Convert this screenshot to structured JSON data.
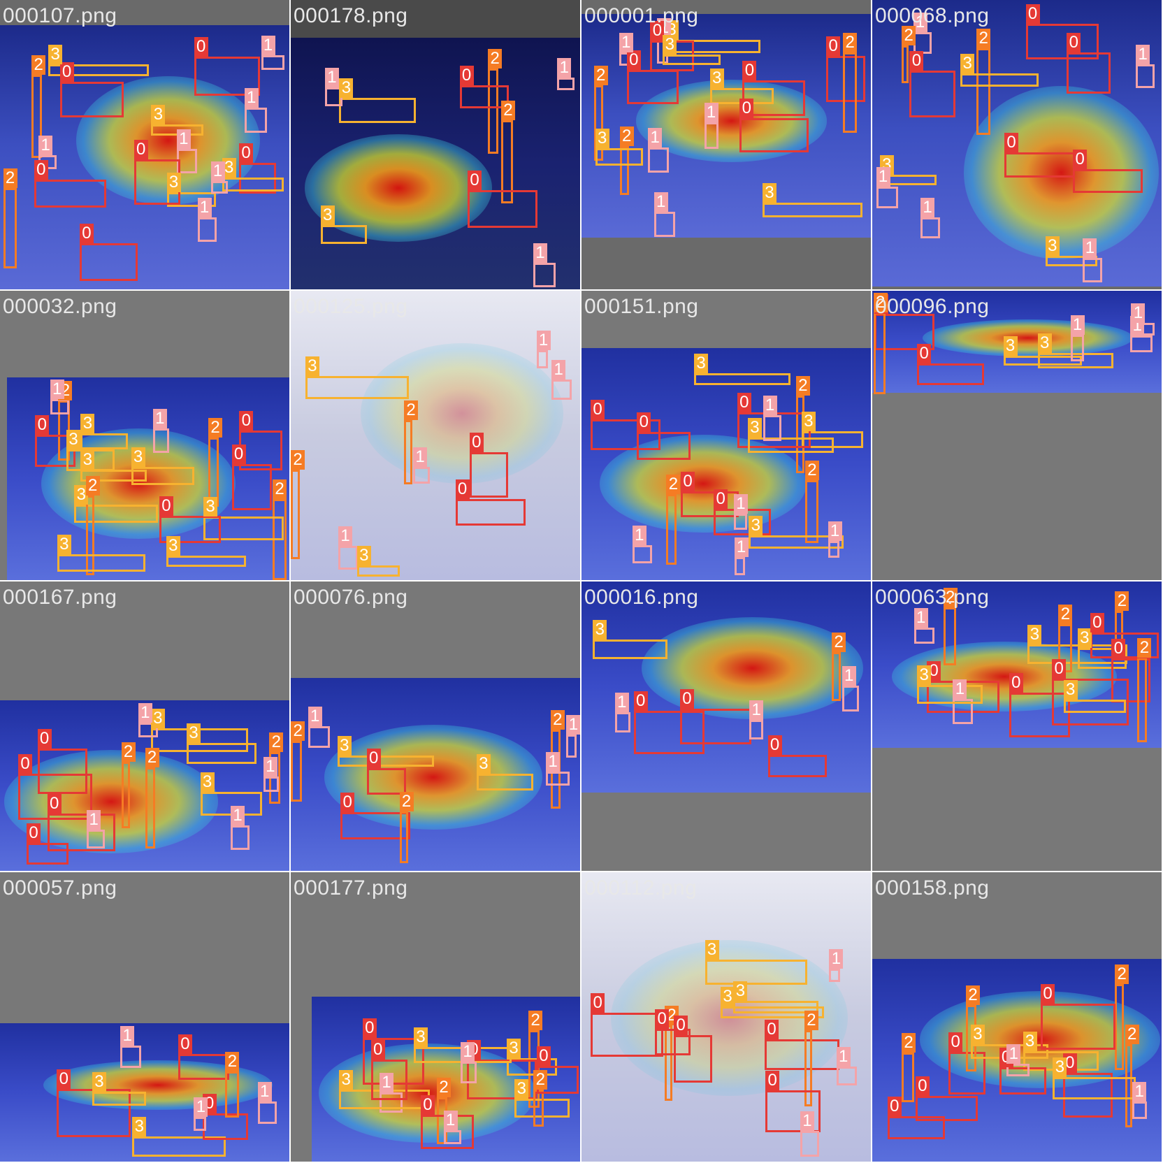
{
  "colors": {
    "class_0": "#e53935",
    "class_1": "#f4a3a8",
    "class_2": "#f57c24",
    "class_3": "#f7b230",
    "pad_gray": "#6e6e6e",
    "tile_divider": "#ffffff"
  },
  "tiles": [
    {
      "file": "000107.png",
      "tone": "blue",
      "labels": [
        "0",
        "3",
        "3",
        "0",
        "2",
        "1",
        "1",
        "0",
        "1",
        "0",
        "3",
        "3",
        "0",
        "2",
        "1",
        "1",
        "0",
        "1"
      ]
    },
    {
      "file": "000178.png",
      "tone": "dark",
      "labels": [
        "2",
        "2",
        "3",
        "3",
        "1",
        "1",
        "1",
        "0",
        "0"
      ]
    },
    {
      "file": "000001.png",
      "tone": "blue",
      "labels": [
        "3",
        "0",
        "1",
        "0",
        "1",
        "2",
        "0",
        "1",
        "3",
        "3",
        "1",
        "2",
        "2",
        "0",
        "3",
        "0",
        "1",
        "3"
      ]
    },
    {
      "file": "000068.png",
      "tone": "blue",
      "labels": [
        "2",
        "3",
        "3",
        "0",
        "1",
        "1",
        "1",
        "0",
        "2",
        "0",
        "1",
        "0",
        "3",
        "0",
        "1"
      ]
    },
    {
      "file": "000032.png",
      "tone": "gray",
      "labels": [
        "2",
        "2",
        "3",
        "0",
        "1",
        "3",
        "0",
        "3",
        "3",
        "2",
        "2",
        "3",
        "0",
        "1",
        "3",
        "0",
        "3",
        "3"
      ]
    },
    {
      "file": "000125.png",
      "tone": "snow",
      "labels": [
        "2",
        "0",
        "0",
        "3",
        "1",
        "1",
        "1",
        "1",
        "2",
        "3"
      ]
    },
    {
      "file": "000151.png",
      "tone": "gray",
      "labels": [
        "2",
        "2",
        "3",
        "0",
        "1",
        "3",
        "3",
        "0",
        "1",
        "1",
        "2",
        "0",
        "0",
        "3",
        "1",
        "1",
        "0"
      ]
    },
    {
      "file": "000096.png",
      "tone": "gray",
      "labels": [
        "3",
        "3",
        "0",
        "2",
        "0",
        "1",
        "1",
        "1"
      ]
    },
    {
      "file": "000167.png",
      "tone": "gray",
      "labels": [
        "2",
        "3",
        "0",
        "2",
        "0",
        "1",
        "1",
        "2",
        "3",
        "0",
        "1",
        "3",
        "1",
        "0"
      ]
    },
    {
      "file": "000076.png",
      "tone": "gray",
      "labels": [
        "3",
        "3",
        "0",
        "2",
        "0",
        "1",
        "1",
        "1",
        "2",
        "2"
      ]
    },
    {
      "file": "000016.png",
      "tone": "gray",
      "labels": [
        "3",
        "0",
        "0",
        "2",
        "0",
        "1",
        "1",
        "1"
      ]
    },
    {
      "file": "000063.png",
      "tone": "gray",
      "labels": [
        "2",
        "3",
        "0",
        "3",
        "0",
        "2",
        "0",
        "1",
        "1",
        "2",
        "3",
        "0",
        "3",
        "0",
        "2"
      ]
    },
    {
      "file": "000057.png",
      "tone": "gray",
      "labels": [
        "3",
        "0",
        "0",
        "2",
        "0",
        "3",
        "1",
        "1",
        "1"
      ]
    },
    {
      "file": "000177.png",
      "tone": "gray",
      "labels": [
        "2",
        "2",
        "3",
        "0",
        "1",
        "1",
        "3",
        "0",
        "3",
        "0",
        "2",
        "3",
        "0",
        "0",
        "1"
      ]
    },
    {
      "file": "000112.png",
      "tone": "snow",
      "labels": [
        "2",
        "0",
        "0",
        "3",
        "0",
        "3",
        "1",
        "2",
        "3",
        "0",
        "0",
        "1",
        "1"
      ]
    },
    {
      "file": "000158.png",
      "tone": "gray",
      "labels": [
        "2",
        "2",
        "0",
        "3",
        "0",
        "0",
        "1",
        "2",
        "2",
        "0",
        "3",
        "3",
        "0",
        "0",
        "1"
      ]
    }
  ]
}
